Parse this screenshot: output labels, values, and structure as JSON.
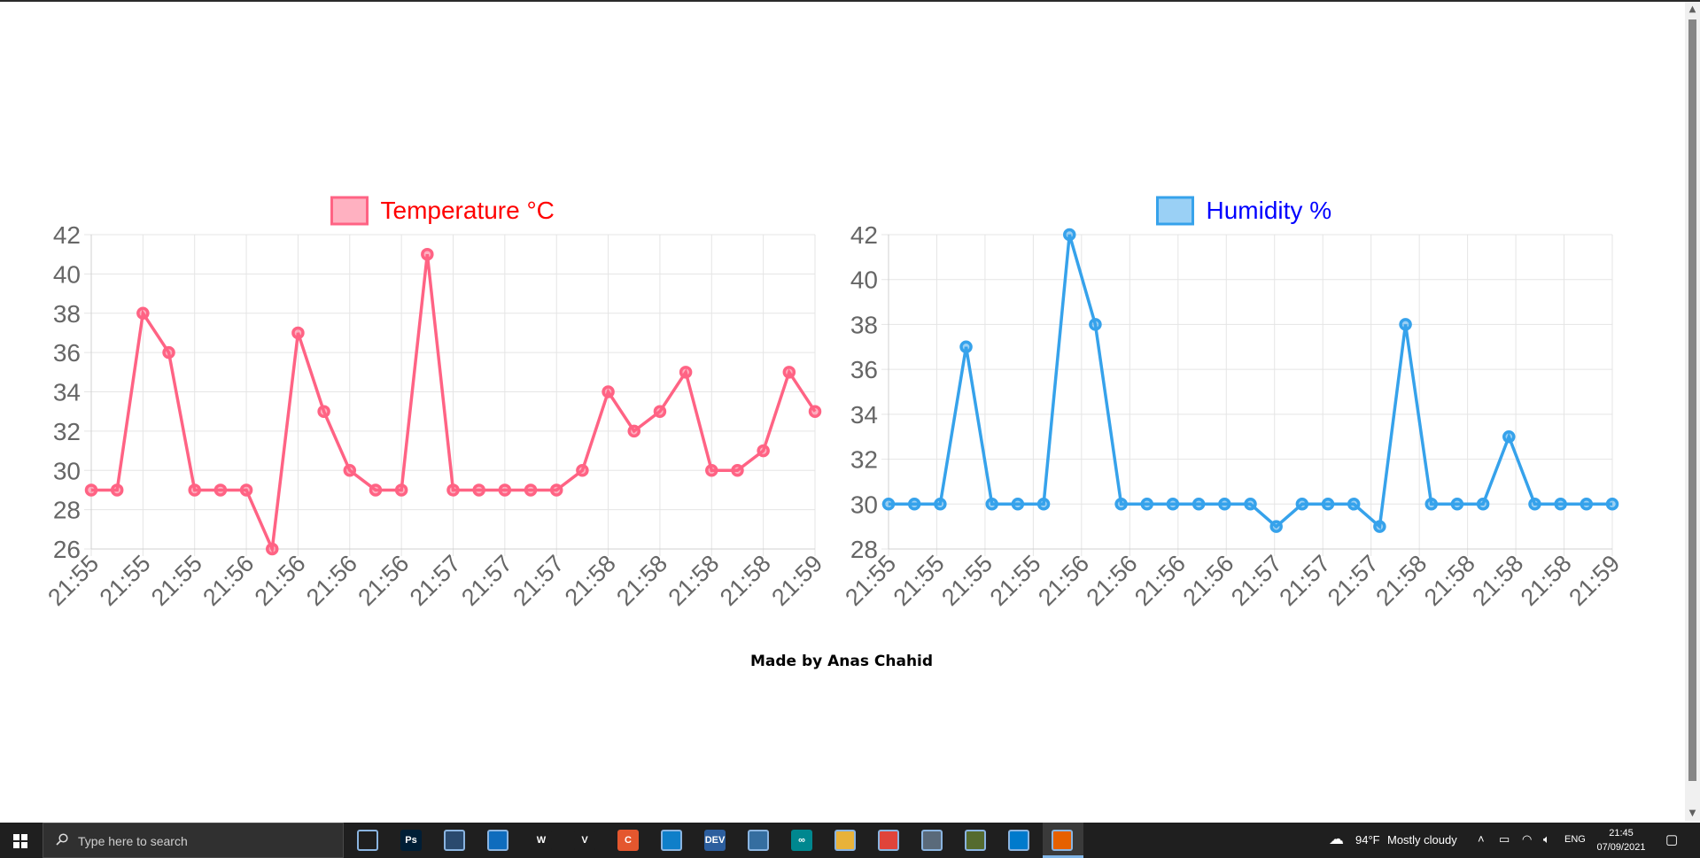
{
  "chart_data": [
    {
      "type": "line",
      "title": "",
      "legend": "top",
      "x": [
        "21:55",
        "21:55",
        "21:55",
        "21:55",
        "21:55",
        "21:55",
        "21:56",
        "21:56",
        "21:56",
        "21:56",
        "21:56",
        "21:56",
        "21:56",
        "21:56",
        "21:57",
        "21:57",
        "21:57",
        "21:57",
        "21:57",
        "21:57",
        "21:58",
        "21:58",
        "21:58",
        "21:58",
        "21:58",
        "21:58",
        "21:58",
        "21:58",
        "21:59"
      ],
      "tick_labels": [
        "21:55",
        "21:55",
        "21:55",
        "21:56",
        "21:56",
        "21:56",
        "21:56",
        "21:57",
        "21:57",
        "21:57",
        "21:58",
        "21:58",
        "21:58",
        "21:58",
        "21:59"
      ],
      "series": [
        {
          "name": "Temperature °C",
          "values": [
            29,
            29,
            38,
            36,
            29,
            29,
            29,
            26,
            37,
            33,
            30,
            29,
            29,
            41,
            29,
            29,
            29,
            29,
            29,
            30,
            34,
            32,
            33,
            35,
            30,
            30,
            31,
            35,
            33
          ]
        }
      ],
      "ylim": [
        26,
        42
      ],
      "yticks": [
        42,
        40,
        38,
        36,
        34,
        32,
        30,
        28,
        26
      ],
      "grid": true,
      "colors": {
        "line": "#ff6384",
        "fill": "rgba(255,99,132,0.5)",
        "legend_text": "#ff0000"
      }
    },
    {
      "type": "line",
      "title": "",
      "legend": "top",
      "x": [
        "21:55",
        "21:55",
        "21:55",
        "21:55",
        "21:55",
        "21:55",
        "21:56",
        "21:56",
        "21:56",
        "21:56",
        "21:56",
        "21:56",
        "21:56",
        "21:56",
        "21:57",
        "21:57",
        "21:57",
        "21:57",
        "21:57",
        "21:57",
        "21:58",
        "21:58",
        "21:58",
        "21:58",
        "21:58",
        "21:58",
        "21:58",
        "21:58",
        "21:59"
      ],
      "tick_labels": [
        "21:55",
        "21:55",
        "21:55",
        "21:55",
        "21:56",
        "21:56",
        "21:56",
        "21:56",
        "21:57",
        "21:57",
        "21:57",
        "21:58",
        "21:58",
        "21:58",
        "21:58",
        "21:59"
      ],
      "series": [
        {
          "name": "Humidity %",
          "values": [
            30,
            30,
            30,
            37,
            30,
            30,
            30,
            42,
            38,
            30,
            30,
            30,
            30,
            30,
            30,
            29,
            30,
            30,
            30,
            29,
            38,
            30,
            30,
            30,
            33,
            30,
            30,
            30,
            30
          ]
        }
      ],
      "ylim": [
        28,
        42
      ],
      "yticks": [
        42,
        40,
        38,
        36,
        34,
        32,
        30,
        28
      ],
      "grid": true,
      "colors": {
        "line": "#36a2eb",
        "fill": "rgba(54,162,235,0.5)",
        "legend_text": "#0000ff"
      }
    }
  ],
  "footer": {
    "text": "Made by Anas Chahid"
  },
  "taskbar": {
    "search_placeholder": "Type here to search",
    "apps": [
      {
        "icon": "task-view-icon",
        "label": ""
      },
      {
        "icon": "photoshop-icon",
        "label": "Ps"
      },
      {
        "icon": "mysql-workbench-icon",
        "label": ""
      },
      {
        "icon": "mail-icon",
        "label": ""
      },
      {
        "icon": "waves-icon",
        "label": "W"
      },
      {
        "icon": "v-app-icon",
        "label": "V"
      },
      {
        "icon": "camtasia-icon",
        "label": "C"
      },
      {
        "icon": "edge-icon",
        "label": ""
      },
      {
        "icon": "devcpp-icon",
        "label": "DEV"
      },
      {
        "icon": "python-icon",
        "label": ""
      },
      {
        "icon": "arduino-icon",
        "label": "∞"
      },
      {
        "icon": "file-explorer-icon",
        "label": ""
      },
      {
        "icon": "chrome-icon",
        "label": ""
      },
      {
        "icon": "paint-icon",
        "label": ""
      },
      {
        "icon": "sketch-icon",
        "label": ""
      },
      {
        "icon": "vscode-icon",
        "label": ""
      },
      {
        "icon": "firefox-icon",
        "label": ""
      }
    ],
    "weather": {
      "temp": "94°F",
      "condition": "Mostly cloudy"
    },
    "language": "ENG",
    "time": "21:45",
    "date": "07/09/2021"
  }
}
